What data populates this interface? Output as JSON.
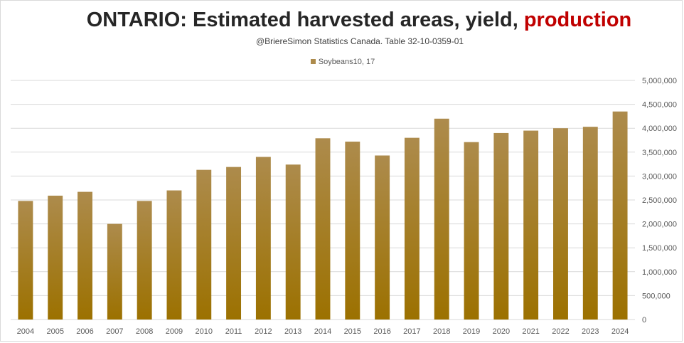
{
  "header": {
    "title_main": "ONTARIO: Estimated harvested areas, yield,",
    "title_highlight": "production",
    "subtitle": "@BriereSimon Statistics Canada. Table 32-10-0359-01"
  },
  "colors": {
    "bar_top": "#ad8b4c",
    "bar_bottom": "#9c7100",
    "title_highlight": "#c00000",
    "grid": "#d9d9d9"
  },
  "chart_data": {
    "type": "bar",
    "title": "ONTARIO: Estimated harvested areas, yield, production",
    "subtitle": "@BriereSimon Statistics Canada. Table 32-10-0359-01",
    "categories": [
      "2004",
      "2005",
      "2006",
      "2007",
      "2008",
      "2009",
      "2010",
      "2011",
      "2012",
      "2013",
      "2014",
      "2015",
      "2016",
      "2017",
      "2018",
      "2019",
      "2020",
      "2021",
      "2022",
      "2023",
      "2024"
    ],
    "series": [
      {
        "name": "Soybeans10, 17",
        "values": [
          2480000,
          2590000,
          2670000,
          2000000,
          2480000,
          2700000,
          3130000,
          3190000,
          3400000,
          3240000,
          3790000,
          3720000,
          3430000,
          3800000,
          4200000,
          3710000,
          3900000,
          3950000,
          4000000,
          4030000,
          4350000
        ]
      }
    ],
    "yticks": [
      "0",
      "500,000",
      "1,000,000",
      "1,500,000",
      "2,000,000",
      "2,500,000",
      "3,000,000",
      "3,500,000",
      "4,000,000",
      "4,500,000",
      "5,000,000"
    ],
    "ylim": [
      0,
      5000000
    ],
    "xlabel": "",
    "ylabel": "",
    "grid": true,
    "y_axis_side": "right",
    "legend_position": "top"
  }
}
